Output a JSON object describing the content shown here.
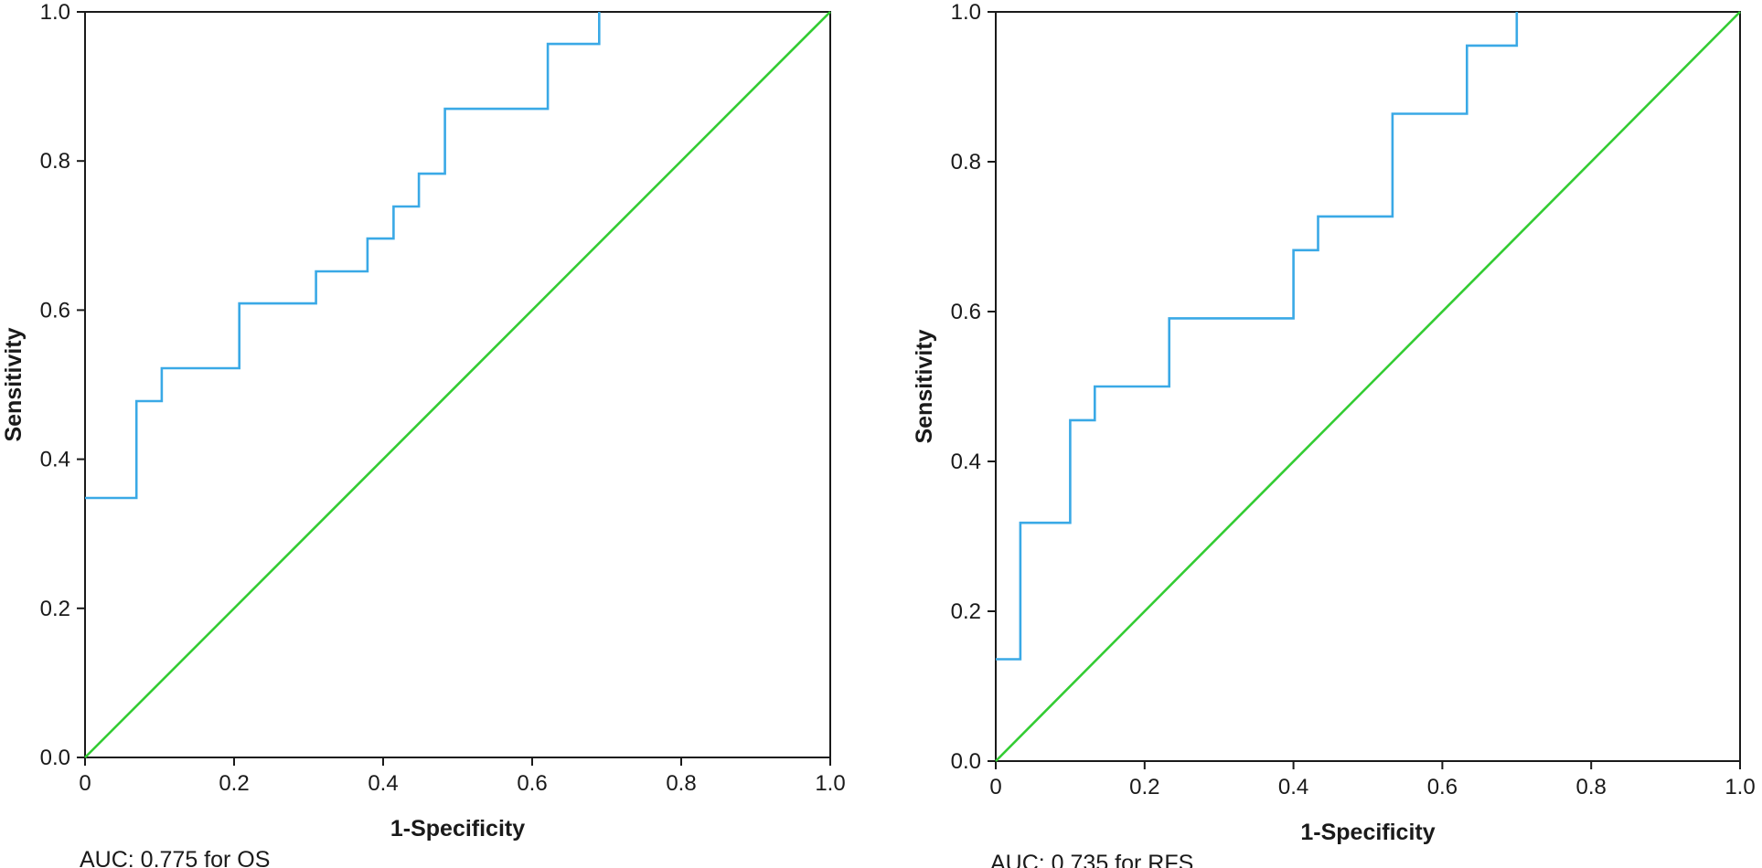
{
  "chart_data": [
    {
      "type": "line",
      "xlabel": "1-Specificity",
      "ylabel": "Sensitivity",
      "caption": "AUC: 0.775 for OS",
      "xlim": [
        0,
        1
      ],
      "ylim": [
        0,
        1
      ],
      "x_ticks": [
        "0",
        "0.2",
        "0.4",
        "0.6",
        "0.8",
        "1.0"
      ],
      "y_ticks": [
        "0.0",
        "0.2",
        "0.4",
        "0.6",
        "0.8",
        "1.0"
      ],
      "grid": false,
      "series": [
        {
          "color": "#3aa9e6",
          "step": true,
          "points": [
            [
              0,
              0.348
            ],
            [
              0.069,
              0.348
            ],
            [
              0.069,
              0.478
            ],
            [
              0.103,
              0.478
            ],
            [
              0.103,
              0.522
            ],
            [
              0.207,
              0.522
            ],
            [
              0.207,
              0.609
            ],
            [
              0.31,
              0.609
            ],
            [
              0.31,
              0.652
            ],
            [
              0.379,
              0.652
            ],
            [
              0.379,
              0.696
            ],
            [
              0.414,
              0.696
            ],
            [
              0.414,
              0.739
            ],
            [
              0.448,
              0.739
            ],
            [
              0.448,
              0.783
            ],
            [
              0.483,
              0.783
            ],
            [
              0.483,
              0.87
            ],
            [
              0.621,
              0.87
            ],
            [
              0.621,
              0.957
            ],
            [
              0.69,
              0.957
            ],
            [
              0.69,
              1.0
            ]
          ]
        },
        {
          "color": "#33cc33",
          "points": [
            [
              0,
              0
            ],
            [
              1,
              1
            ]
          ]
        }
      ]
    },
    {
      "type": "line",
      "xlabel": "1-Specificity",
      "ylabel": "Sensitivity",
      "caption": "AUC: 0.735 for RFS",
      "xlim": [
        0,
        1
      ],
      "ylim": [
        0,
        1
      ],
      "x_ticks": [
        "0",
        "0.2",
        "0.4",
        "0.6",
        "0.8",
        "1.0"
      ],
      "y_ticks": [
        "0.0",
        "0.2",
        "0.4",
        "0.6",
        "0.8",
        "1.0"
      ],
      "grid": false,
      "series": [
        {
          "color": "#3aa9e6",
          "step": true,
          "points": [
            [
              0,
              0.136
            ],
            [
              0.033,
              0.136
            ],
            [
              0.033,
              0.318
            ],
            [
              0.1,
              0.318
            ],
            [
              0.1,
              0.455
            ],
            [
              0.133,
              0.455
            ],
            [
              0.133,
              0.5
            ],
            [
              0.233,
              0.5
            ],
            [
              0.233,
              0.591
            ],
            [
              0.4,
              0.591
            ],
            [
              0.4,
              0.682
            ],
            [
              0.433,
              0.682
            ],
            [
              0.433,
              0.727
            ],
            [
              0.533,
              0.727
            ],
            [
              0.533,
              0.864
            ],
            [
              0.633,
              0.864
            ],
            [
              0.633,
              0.955
            ],
            [
              0.7,
              0.955
            ],
            [
              0.7,
              1.0
            ]
          ]
        },
        {
          "color": "#33cc33",
          "points": [
            [
              0,
              0
            ],
            [
              1,
              1
            ]
          ]
        }
      ]
    }
  ]
}
